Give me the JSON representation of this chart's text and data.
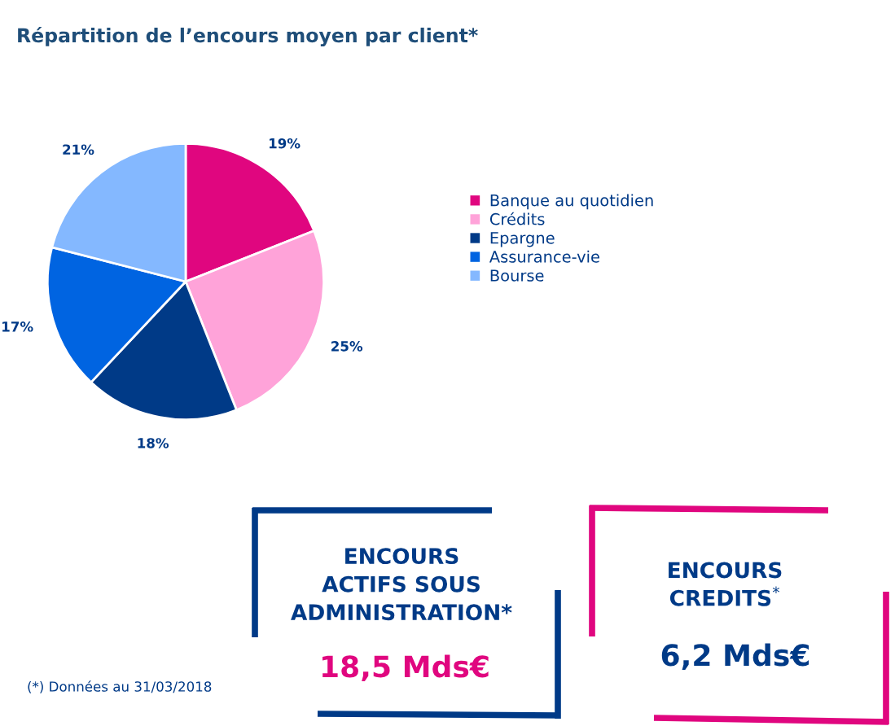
{
  "chart_data": {
    "type": "pie",
    "title": "Répartition de l’encours moyen par client*",
    "categories": [
      "Banque au quotidien",
      "Crédits",
      "Epargne",
      "Assurance-vie",
      "Bourse"
    ],
    "values": [
      19,
      25,
      18,
      17,
      21
    ],
    "colors": [
      "#e0067f",
      "#ffa3d9",
      "#003a87",
      "#0064e1",
      "#84b8ff"
    ],
    "value_labels": [
      "19%",
      "25%",
      "18%",
      "17%",
      "21%"
    ],
    "legend": "right",
    "annotations": [
      "ENCOURS\nACTIFS SOUS\nADMINISTRATION*",
      "18,5 Mds€",
      "ENCOURS\nCREDITS$^{*}$",
      "6,2 Mds€",
      "(*) Données au 31/03/2018"
    ]
  }
}
